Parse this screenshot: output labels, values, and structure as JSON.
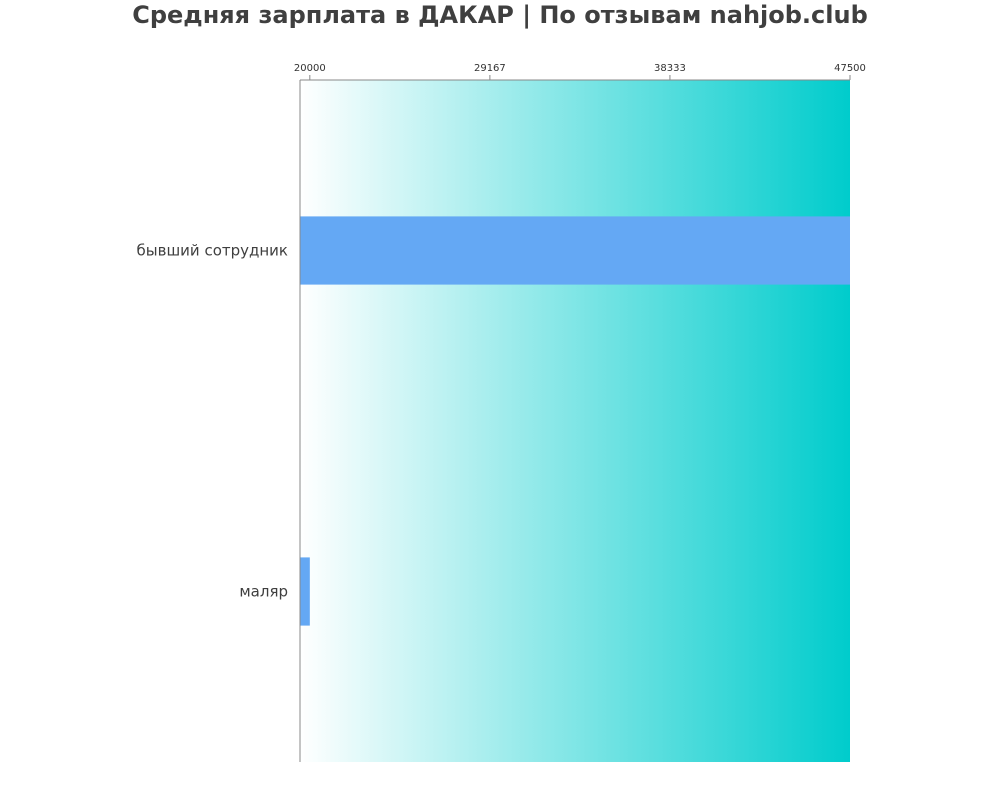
{
  "chart_data": {
    "type": "bar",
    "orientation": "horizontal",
    "title": "Средняя зарплата в ДАКАР | По отзывам nahjob.club",
    "xlabel": "",
    "ylabel": "",
    "categories": [
      "бывший сотрудник",
      "маляр"
    ],
    "values": [
      47500,
      20000
    ],
    "xlim": [
      19500,
      47500
    ],
    "xticks": [
      20000,
      29167,
      38333,
      47500
    ],
    "xtick_labels": [
      "20000",
      "29167",
      "38333",
      "47500"
    ],
    "axis_position": "top",
    "grid": false,
    "legend": "none",
    "colors": {
      "bar": "#64a8f4",
      "background_start": "#ffffff",
      "background_end": "#00cccc",
      "axis": "#888888",
      "title": "#3f3f3f",
      "label": "#3f3f3f"
    }
  }
}
